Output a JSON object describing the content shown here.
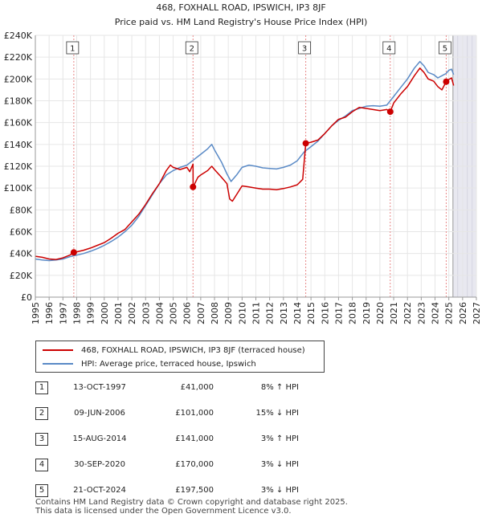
{
  "chart_data": {
    "type": "line",
    "title": "468, FOXHALL ROAD, IPSWICH, IP3 8JF",
    "subtitle": "Price paid vs. HM Land Registry's House Price Index (HPI)",
    "xlim": [
      1995,
      2027
    ],
    "ylim": [
      0,
      240000
    ],
    "x_ticks": [
      "1995",
      "1996",
      "1997",
      "1998",
      "1999",
      "2000",
      "2001",
      "2002",
      "2003",
      "2004",
      "2005",
      "2006",
      "2007",
      "2008",
      "2009",
      "2010",
      "2011",
      "2012",
      "2013",
      "2014",
      "2015",
      "2016",
      "2017",
      "2018",
      "2019",
      "2020",
      "2021",
      "2022",
      "2023",
      "2024",
      "2025",
      "2026",
      "2027"
    ],
    "y_ticks": [
      {
        "value": 0,
        "label": "£0"
      },
      {
        "value": 20000,
        "label": "£20K"
      },
      {
        "value": 40000,
        "label": "£40K"
      },
      {
        "value": 60000,
        "label": "£60K"
      },
      {
        "value": 80000,
        "label": "£80K"
      },
      {
        "value": 100000,
        "label": "£100K"
      },
      {
        "value": 120000,
        "label": "£120K"
      },
      {
        "value": 140000,
        "label": "£140K"
      },
      {
        "value": 160000,
        "label": "£160K"
      },
      {
        "value": 180000,
        "label": "£180K"
      },
      {
        "value": 200000,
        "label": "£200K"
      },
      {
        "value": 220000,
        "label": "£220K"
      },
      {
        "value": 240000,
        "label": "£240K"
      }
    ],
    "future_start": 2025.3,
    "series": [
      {
        "name": "468, FOXHALL ROAD, IPSWICH, IP3 8JF (terraced house)",
        "color": "#cc0000",
        "points": [
          [
            1995.0,
            37500
          ],
          [
            1995.5,
            36500
          ],
          [
            1996.0,
            35000
          ],
          [
            1996.5,
            34500
          ],
          [
            1997.0,
            36000
          ],
          [
            1997.5,
            38500
          ],
          [
            1997.79,
            41000
          ],
          [
            1998.0,
            41500
          ],
          [
            1998.5,
            43000
          ],
          [
            1999.0,
            45000
          ],
          [
            1999.5,
            47500
          ],
          [
            2000.0,
            50000
          ],
          [
            2000.5,
            54000
          ],
          [
            2001.0,
            58500
          ],
          [
            2001.5,
            62000
          ],
          [
            2002.0,
            69000
          ],
          [
            2002.5,
            76000
          ],
          [
            2003.0,
            85000
          ],
          [
            2003.5,
            95000
          ],
          [
            2004.0,
            104000
          ],
          [
            2004.5,
            116000
          ],
          [
            2004.8,
            121000
          ],
          [
            2005.0,
            119000
          ],
          [
            2005.5,
            117000
          ],
          [
            2006.0,
            119000
          ],
          [
            2006.2,
            115000
          ],
          [
            2006.44,
            122000
          ],
          [
            2006.45,
            101000
          ],
          [
            2006.8,
            110000
          ],
          [
            2007.0,
            112000
          ],
          [
            2007.5,
            116000
          ],
          [
            2007.8,
            120000
          ],
          [
            2008.0,
            117000
          ],
          [
            2008.5,
            110000
          ],
          [
            2008.9,
            104000
          ],
          [
            2009.1,
            90000
          ],
          [
            2009.3,
            88000
          ],
          [
            2009.7,
            96000
          ],
          [
            2010.0,
            102000
          ],
          [
            2010.5,
            101000
          ],
          [
            2011.0,
            100000
          ],
          [
            2011.5,
            99000
          ],
          [
            2012.0,
            99000
          ],
          [
            2012.5,
            98500
          ],
          [
            2013.0,
            99500
          ],
          [
            2013.5,
            101000
          ],
          [
            2014.0,
            103000
          ],
          [
            2014.4,
            108000
          ],
          [
            2014.62,
            141000
          ],
          [
            2015.0,
            142000
          ],
          [
            2015.5,
            144000
          ],
          [
            2016.0,
            150000
          ],
          [
            2016.5,
            157000
          ],
          [
            2017.0,
            163000
          ],
          [
            2017.5,
            165000
          ],
          [
            2018.0,
            170000
          ],
          [
            2018.5,
            174000
          ],
          [
            2019.0,
            173000
          ],
          [
            2019.5,
            172000
          ],
          [
            2020.0,
            171000
          ],
          [
            2020.5,
            172000
          ],
          [
            2020.75,
            170000
          ],
          [
            2021.0,
            178000
          ],
          [
            2021.5,
            186000
          ],
          [
            2022.0,
            193000
          ],
          [
            2022.5,
            203000
          ],
          [
            2022.9,
            210000
          ],
          [
            2023.2,
            206000
          ],
          [
            2023.5,
            200000
          ],
          [
            2023.9,
            198000
          ],
          [
            2024.2,
            193000
          ],
          [
            2024.5,
            190000
          ],
          [
            2024.81,
            197500
          ],
          [
            2025.0,
            199500
          ],
          [
            2025.2,
            201000
          ],
          [
            2025.35,
            194000
          ]
        ]
      },
      {
        "name": "HPI: Average price, terraced house, Ipswich",
        "color": "#5a8ac6",
        "points": [
          [
            1995.0,
            35000
          ],
          [
            1995.5,
            34000
          ],
          [
            1996.0,
            33500
          ],
          [
            1996.5,
            34000
          ],
          [
            1997.0,
            35000
          ],
          [
            1997.5,
            37000
          ],
          [
            1998.0,
            38500
          ],
          [
            1998.5,
            40000
          ],
          [
            1999.0,
            42000
          ],
          [
            1999.5,
            44500
          ],
          [
            2000.0,
            47500
          ],
          [
            2000.5,
            51000
          ],
          [
            2001.0,
            55000
          ],
          [
            2001.5,
            60000
          ],
          [
            2002.0,
            66000
          ],
          [
            2002.5,
            74000
          ],
          [
            2003.0,
            84000
          ],
          [
            2003.5,
            94000
          ],
          [
            2004.0,
            104000
          ],
          [
            2004.5,
            112000
          ],
          [
            2005.0,
            116000
          ],
          [
            2005.5,
            119000
          ],
          [
            2006.0,
            121000
          ],
          [
            2006.5,
            126000
          ],
          [
            2007.0,
            131000
          ],
          [
            2007.5,
            136000
          ],
          [
            2007.8,
            140000
          ],
          [
            2008.0,
            135000
          ],
          [
            2008.5,
            124000
          ],
          [
            2008.9,
            113000
          ],
          [
            2009.2,
            106000
          ],
          [
            2009.6,
            112000
          ],
          [
            2010.0,
            119000
          ],
          [
            2010.5,
            121000
          ],
          [
            2011.0,
            120000
          ],
          [
            2011.5,
            118500
          ],
          [
            2012.0,
            118000
          ],
          [
            2012.5,
            117500
          ],
          [
            2013.0,
            119000
          ],
          [
            2013.5,
            121000
          ],
          [
            2014.0,
            125000
          ],
          [
            2014.5,
            133000
          ],
          [
            2015.0,
            138000
          ],
          [
            2015.5,
            143000
          ],
          [
            2016.0,
            150000
          ],
          [
            2016.5,
            157000
          ],
          [
            2017.0,
            162000
          ],
          [
            2017.5,
            166000
          ],
          [
            2018.0,
            171000
          ],
          [
            2018.5,
            173000
          ],
          [
            2019.0,
            175000
          ],
          [
            2019.5,
            175500
          ],
          [
            2020.0,
            175000
          ],
          [
            2020.5,
            176000
          ],
          [
            2021.0,
            184000
          ],
          [
            2021.5,
            192000
          ],
          [
            2022.0,
            200000
          ],
          [
            2022.5,
            210000
          ],
          [
            2022.9,
            216000
          ],
          [
            2023.2,
            212000
          ],
          [
            2023.5,
            206000
          ],
          [
            2023.9,
            204000
          ],
          [
            2024.2,
            201000
          ],
          [
            2024.5,
            203000
          ],
          [
            2024.8,
            205000
          ],
          [
            2025.0,
            208000
          ],
          [
            2025.2,
            209000
          ],
          [
            2025.35,
            204000
          ]
        ]
      }
    ],
    "sales": [
      {
        "num": "1",
        "x": 1997.79,
        "y": 41000,
        "date": "13-OCT-1997",
        "price": "£41,000",
        "hpi": "8% ↑ HPI"
      },
      {
        "num": "2",
        "x": 2006.44,
        "y": 101000,
        "date": "09-JUN-2006",
        "price": "£101,000",
        "hpi": "15% ↓ HPI"
      },
      {
        "num": "3",
        "x": 2014.62,
        "y": 141000,
        "date": "15-AUG-2014",
        "price": "£141,000",
        "hpi": "3% ↑ HPI"
      },
      {
        "num": "4",
        "x": 2020.75,
        "y": 170000,
        "date": "30-SEP-2020",
        "price": "£170,000",
        "hpi": "3% ↓ HPI"
      },
      {
        "num": "5",
        "x": 2024.81,
        "y": 197500,
        "date": "21-OCT-2024",
        "price": "£197,500",
        "hpi": "3% ↓ HPI"
      }
    ]
  },
  "legend": {
    "property_label": "468, FOXHALL ROAD, IPSWICH, IP3 8JF (terraced house)",
    "hpi_label": "HPI: Average price, terraced house, Ipswich"
  },
  "footer": {
    "line1": "Contains HM Land Registry data © Crown copyright and database right 2025.",
    "line2": "This data is licensed under the Open Government Licence v3.0."
  }
}
